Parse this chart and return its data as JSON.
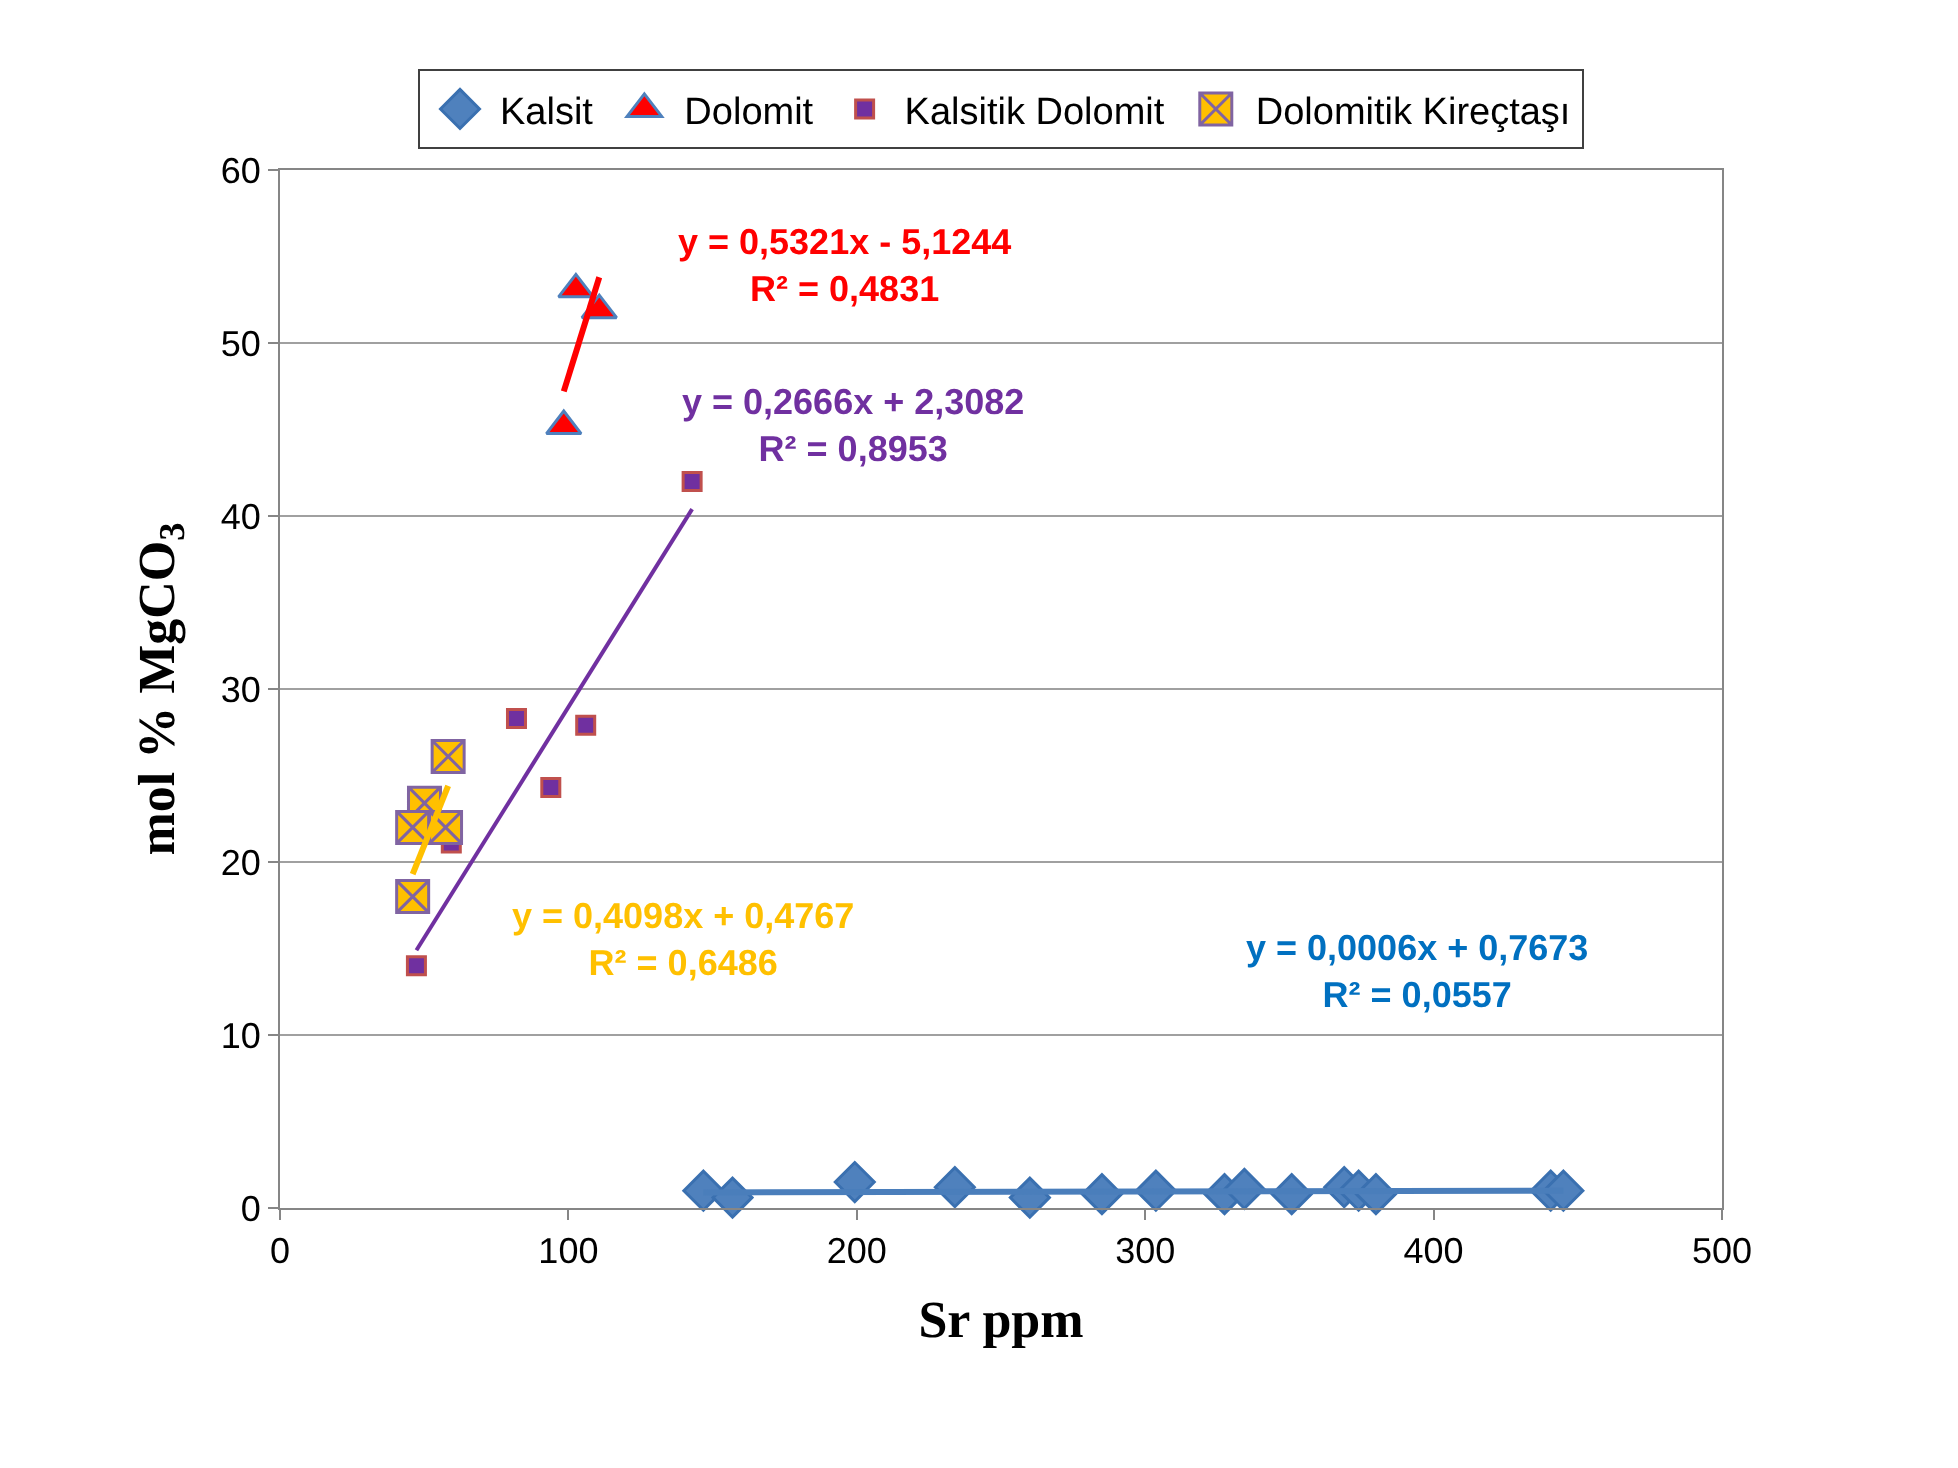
{
  "chart_data": {
    "type": "scatter",
    "xlabel": "Sr ppm",
    "ylabel": "mol % MgCO$_{3}$",
    "xlim": [
      0,
      500
    ],
    "xticks": [
      0,
      100,
      200,
      300,
      400,
      500
    ],
    "ylim": [
      0,
      60
    ],
    "yticks": [
      0,
      10,
      20,
      30,
      40,
      50,
      60
    ],
    "grid": "y",
    "legend": "top",
    "series": [
      {
        "name": "Kalsit",
        "color": "#4f81bd",
        "marker": "diamond",
        "x": [
          146.8,
          156.9,
          199.3,
          234,
          260,
          285,
          303.7,
          327.5,
          334.4,
          350.8,
          369,
          374,
          380,
          440.6,
          445
        ],
        "values": [
          1.0,
          0.6,
          1.5,
          1.2,
          0.6,
          0.8,
          1.0,
          0.8,
          1.1,
          0.8,
          1.2,
          1.0,
          0.8,
          1.0,
          1.0
        ]
      },
      {
        "name": "Dolomit",
        "color": "#ff0000",
        "marker": "triangle",
        "x": [
          102.6,
          110.7,
          98.4
        ],
        "values": [
          53.1,
          51.9,
          45.2
        ]
      },
      {
        "name": "Kalsitik Dolomit",
        "color": "#7030a0",
        "marker": "square",
        "x": [
          142.9,
          82.0,
          106.0,
          93.9,
          47.3,
          59.4
        ],
        "values": [
          42.0,
          28.3,
          27.9,
          24.3,
          14.0,
          21.1
        ]
      },
      {
        "name": "Dolomitik Kireçtaşı",
        "color": "#ffc000",
        "marker": "cross",
        "x": [
          58.3,
          50.1,
          46.0,
          57.4,
          46.0
        ],
        "values": [
          26.1,
          23.4,
          22.0,
          22.0,
          18.0
        ]
      },
      {
        "type": "line",
        "color": "#4a7ebb",
        "marker": "none",
        "x": [
          146.8,
          445
        ],
        "values": [
          0.9,
          1.0
        ]
      },
      {
        "type": "line",
        "color": "#ff0000",
        "marker": "none",
        "x": [
          98.4,
          110.7
        ],
        "values": [
          47.2,
          53.8
        ]
      },
      {
        "type": "line",
        "color": "#7030a0",
        "marker": "none",
        "x": [
          47.3,
          142.9
        ],
        "values": [
          14.9,
          40.4
        ]
      },
      {
        "type": "line",
        "color": "#ffc000",
        "marker": "none",
        "x": [
          46.0,
          58.3
        ],
        "values": [
          19.3,
          24.4
        ]
      }
    ],
    "annotations": [
      "y = 0,0006x + 0,7673\nR² = 0,0557",
      "y = 0,5321x - 5,1244\nR² = 0,4831",
      "y = 0,2666x + 2,3082\nR² = 0,8953",
      "y = 0,4098x + 0,4767\nR² = 0,6486"
    ]
  }
}
